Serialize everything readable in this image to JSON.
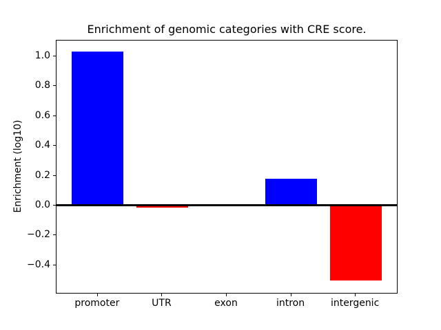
{
  "chart_data": {
    "type": "bar",
    "title": "Enrichment of genomic categories with CRE score.",
    "xlabel": "",
    "ylabel": "Enrichment (log10)",
    "categories": [
      "promoter",
      "UTR",
      "exon",
      "intron",
      "intergenic"
    ],
    "values": [
      1.03,
      -0.015,
      0.0,
      0.18,
      -0.5
    ],
    "bar_colors": [
      "#0000ff",
      "#ff0000",
      "#ff0000",
      "#0000ff",
      "#ff0000"
    ],
    "positive_color": "#0000ff",
    "negative_color": "#ff0000",
    "bar_width": 0.8,
    "xlim": [
      -0.64,
      4.64
    ],
    "ylim": [
      -0.585,
      1.105
    ],
    "yticks": [
      {
        "v": 1.0,
        "label": "1.0"
      },
      {
        "v": 0.8,
        "label": "0.8"
      },
      {
        "v": 0.6,
        "label": "0.6"
      },
      {
        "v": 0.4,
        "label": "0.4"
      },
      {
        "v": 0.2,
        "label": "0.2"
      },
      {
        "v": 0.0,
        "label": "0.0"
      },
      {
        "v": -0.2,
        "label": "−0.2"
      },
      {
        "v": -0.4,
        "label": "−0.4"
      }
    ],
    "zero_line": {
      "value": 0,
      "color": "#000000",
      "thickness_px": 3
    },
    "grid": false,
    "legend": "none",
    "plot_background": "#ffffff"
  }
}
